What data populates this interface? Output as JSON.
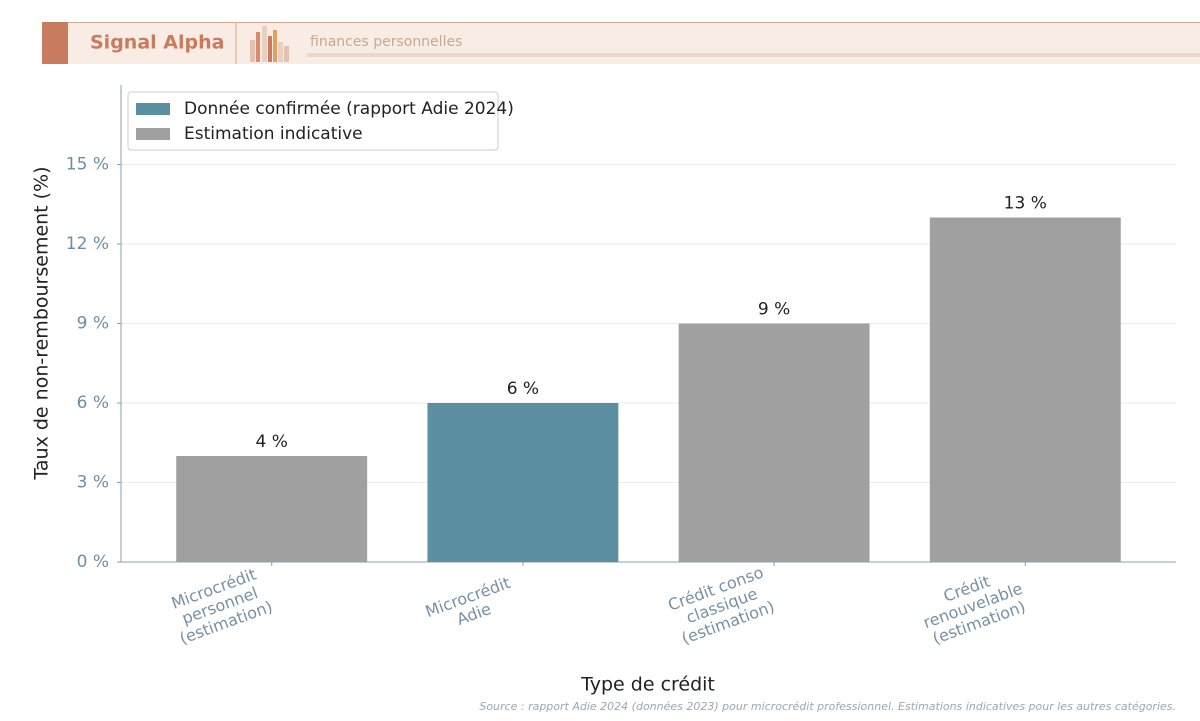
{
  "header": {
    "brand": "Signal Alpha",
    "section": "finances personnelles"
  },
  "chart_data": {
    "type": "bar",
    "x_label": "Type de crédit",
    "y_label": "Taux de non-remboursement (%)",
    "source": "Source : rapport Adie 2024 (données 2023) pour microcrédit professionnel. Estimations indicatives pour les autres catégories.",
    "categories": [
      "Microcrédit\npersonnel\n(estimation)",
      "Microcrédit\nAdie",
      "Crédit conso\nclassique\n(estimation)",
      "Crédit\nrenouvelable\n(estimation)"
    ],
    "series": [
      {
        "name": "Donnée confirmée (rapport Adie 2024)",
        "color": "#5d8fa2",
        "values": [
          null,
          6,
          null,
          null
        ],
        "value_labels": [
          null,
          "6 %",
          null,
          null
        ]
      },
      {
        "name": "Estimation indicative",
        "color": "#a0a0a0",
        "values": [
          4,
          null,
          9,
          13
        ],
        "value_labels": [
          "4 %",
          null,
          "9 %",
          "13 %"
        ]
      }
    ],
    "ylim": [
      0,
      18
    ],
    "yticks": [
      {
        "value": 0,
        "label": "0 %"
      },
      {
        "value": 3,
        "label": "3 %"
      },
      {
        "value": 6,
        "label": "6 %"
      },
      {
        "value": 9,
        "label": "9 %"
      },
      {
        "value": 12,
        "label": "12 %"
      },
      {
        "value": 15,
        "label": "15 %"
      }
    ],
    "grid": true,
    "legend": "upper left"
  }
}
